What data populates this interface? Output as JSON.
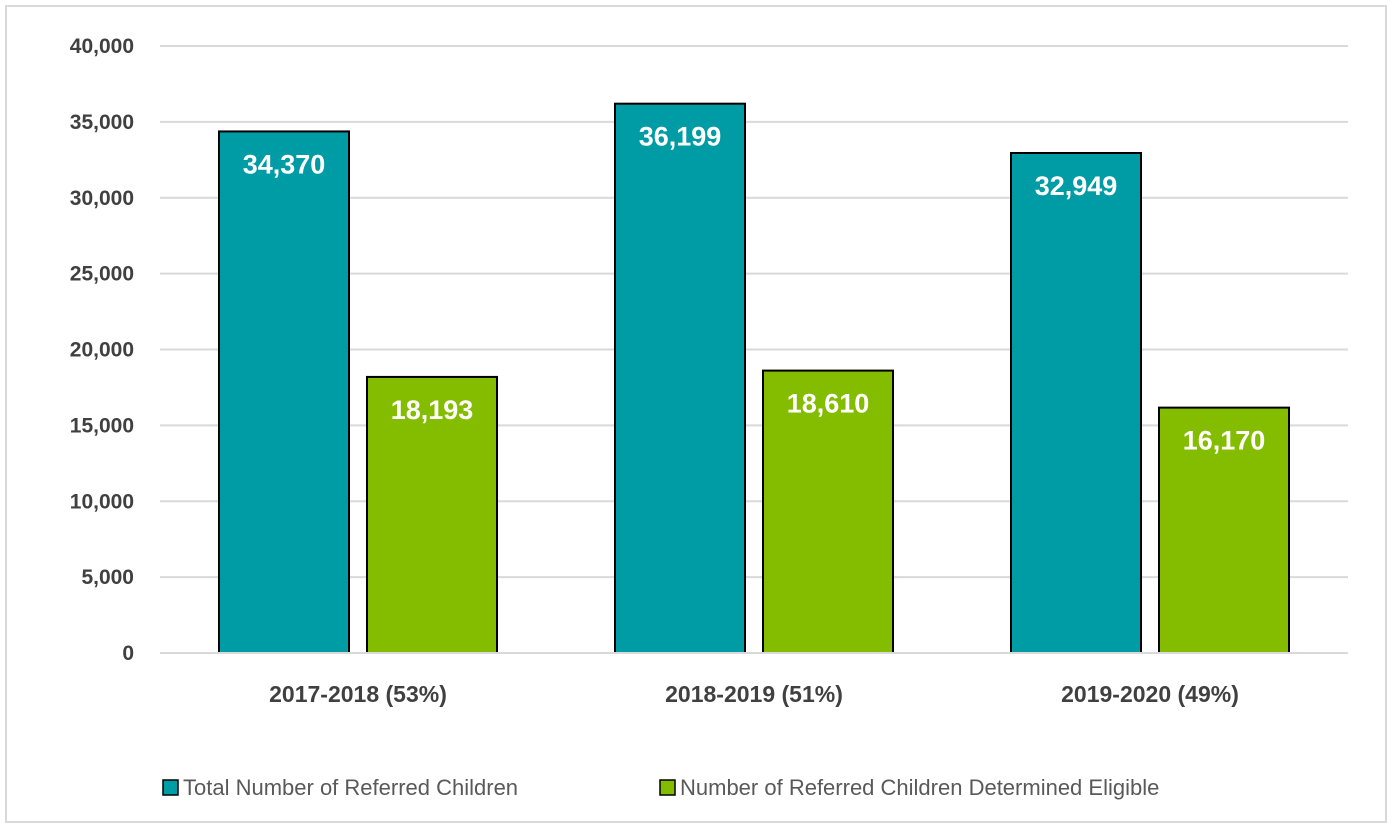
{
  "chart_data": {
    "type": "bar",
    "categories": [
      "2017-2018 (53%)",
      "2018-2019 (51%)",
      "2019-2020 (49%)"
    ],
    "series": [
      {
        "name": "Total Number of Referred Children",
        "values": [
          34370,
          36199,
          32949
        ],
        "color": "#009ca6",
        "labels": [
          "34,370",
          "36,199",
          "32,949"
        ]
      },
      {
        "name": "Number of Referred Children Determined Eligible",
        "values": [
          18193,
          18610,
          16170
        ],
        "color": "#84bd00",
        "labels": [
          "18,193",
          "18,610",
          "16,170"
        ]
      }
    ],
    "ylim": [
      0,
      40000
    ],
    "yticks": [
      {
        "value": 0,
        "label": "0"
      },
      {
        "value": 5000,
        "label": "5,000"
      },
      {
        "value": 10000,
        "label": "10,000"
      },
      {
        "value": 15000,
        "label": "15,000"
      },
      {
        "value": 20000,
        "label": "20,000"
      },
      {
        "value": 25000,
        "label": "25,000"
      },
      {
        "value": 30000,
        "label": "30,000"
      },
      {
        "value": 35000,
        "label": "35,000"
      },
      {
        "value": 40000,
        "label": "40,000"
      }
    ],
    "grid": true,
    "legend_position": "bottom",
    "gridline_color": "#d9d9d9"
  }
}
